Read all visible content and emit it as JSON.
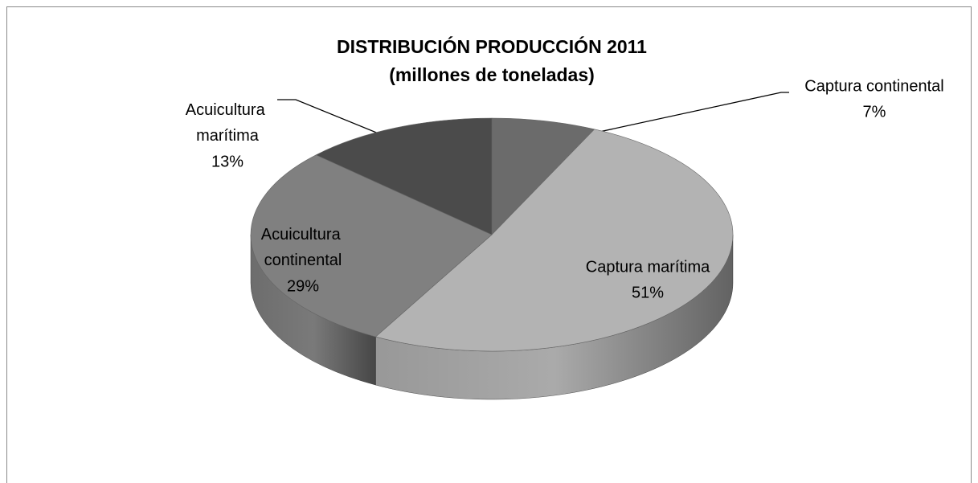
{
  "chart_data": {
    "type": "pie",
    "title": "DISTRIBUCIÓN PRODUCCIÓN 2011",
    "subtitle": "(millones de toneladas)",
    "categories": [
      "Captura continental",
      "Captura marítima",
      "Acuicultura continental",
      "Acuicultura marítima"
    ],
    "values": [
      7,
      51,
      29,
      13
    ],
    "value_labels": [
      "7%",
      "51%",
      "29%",
      "13%"
    ],
    "colors": [
      "#6b6b6b",
      "#b3b3b3",
      "#808080",
      "#4b4b4b"
    ]
  }
}
